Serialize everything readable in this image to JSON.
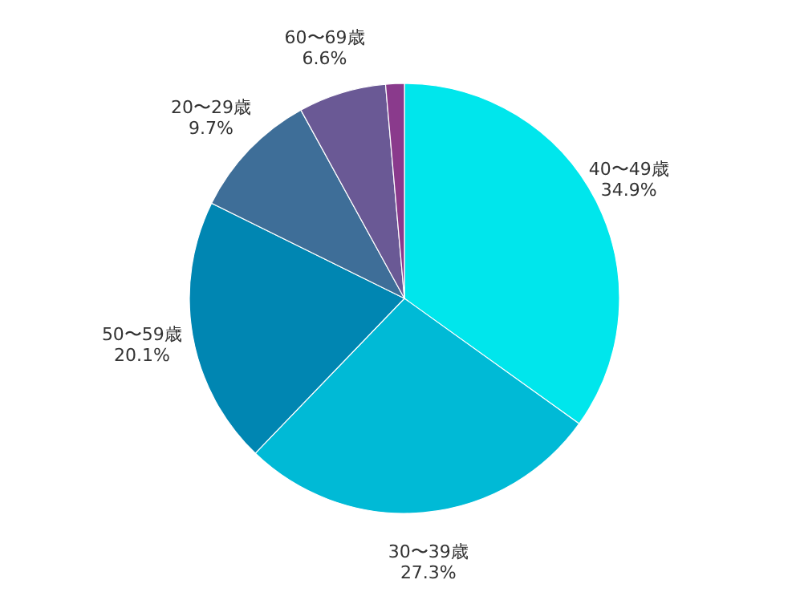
{
  "chart_data": {
    "type": "pie",
    "categories": [
      "40〜49歳",
      "30〜39歳",
      "50〜59歳",
      "20〜29歳",
      "60〜69歳",
      null
    ],
    "values": [
      34.9,
      27.3,
      20.1,
      9.7,
      6.6,
      1.4
    ],
    "colors": [
      "#00e6ec",
      "#00bad6",
      "#0086b2",
      "#3e6e98",
      "#6a5995",
      "#8a3a8c"
    ],
    "value_labels": [
      "34.9%",
      "27.3%",
      "20.1%",
      "9.7%",
      "6.6%",
      null
    ]
  }
}
